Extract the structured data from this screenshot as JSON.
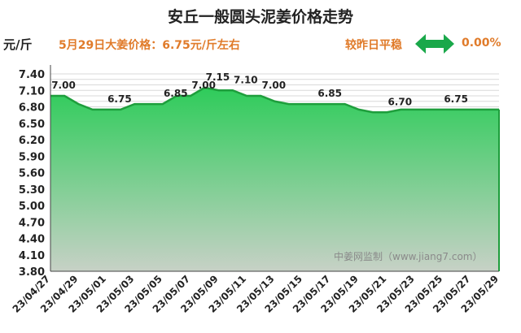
{
  "header": {
    "title": "安丘一般圆头泥姜价格走势",
    "unit": "元/斤",
    "price_note": "5月29日大姜价格：6.75元/斤左右",
    "compare_label": "较昨日平稳",
    "compare_value": "0.00%",
    "compare_icon": "double-arrow-icon",
    "accent_color": "#e07b2a",
    "arrow_color": "#1aa84a"
  },
  "watermark": "中姜网监制（www.jiang7.com）",
  "chart_data": {
    "type": "area",
    "title": "安丘一般圆头泥姜价格走势",
    "ylabel": "元/斤",
    "ylim": [
      3.8,
      7.4
    ],
    "yticks": [
      3.8,
      4.1,
      4.4,
      4.7,
      5.0,
      5.3,
      5.6,
      5.9,
      6.2,
      6.5,
      6.8,
      7.1,
      7.4
    ],
    "x_tick_labels": [
      "23/04/27",
      "23/04/29",
      "23/05/01",
      "23/05/03",
      "23/05/05",
      "23/05/07",
      "23/05/09",
      "23/05/11",
      "23/05/13",
      "23/05/15",
      "23/05/17",
      "23/05/19",
      "23/05/21",
      "23/05/23",
      "23/05/25",
      "23/05/27",
      "23/05/29"
    ],
    "dates": [
      "23/04/27",
      "23/04/28",
      "23/04/29",
      "23/04/30",
      "23/05/01",
      "23/05/02",
      "23/05/03",
      "23/05/04",
      "23/05/05",
      "23/05/06",
      "23/05/07",
      "23/05/08",
      "23/05/09",
      "23/05/10",
      "23/05/11",
      "23/05/12",
      "23/05/13",
      "23/05/14",
      "23/05/15",
      "23/05/16",
      "23/05/17",
      "23/05/18",
      "23/05/19",
      "23/05/20",
      "23/05/21",
      "23/05/22",
      "23/05/23",
      "23/05/24",
      "23/05/25",
      "23/05/26",
      "23/05/27",
      "23/05/28",
      "23/05/29"
    ],
    "values": [
      7.0,
      7.0,
      6.85,
      6.75,
      6.75,
      6.75,
      6.85,
      6.85,
      6.85,
      7.0,
      7.0,
      7.15,
      7.1,
      7.1,
      7.0,
      7.0,
      6.9,
      6.85,
      6.85,
      6.85,
      6.85,
      6.85,
      6.75,
      6.7,
      6.7,
      6.75,
      6.75,
      6.75,
      6.75,
      6.75,
      6.75,
      6.75,
      6.75
    ],
    "data_labels": [
      {
        "date": "23/04/27",
        "text": "7.00"
      },
      {
        "date": "23/05/01",
        "text": "6.75"
      },
      {
        "date": "23/05/05",
        "text": "6.85"
      },
      {
        "date": "23/05/07",
        "text": "7.00"
      },
      {
        "date": "23/05/08",
        "text": "7.15"
      },
      {
        "date": "23/05/10",
        "text": "7.10"
      },
      {
        "date": "23/05/12",
        "text": "7.00"
      },
      {
        "date": "23/05/16",
        "text": "6.85"
      },
      {
        "date": "23/05/21",
        "text": "6.70"
      },
      {
        "date": "23/05/25",
        "text": "6.75"
      }
    ],
    "grid": true,
    "fill_color_top": "#2ecc5a",
    "fill_color_bottom": "#c7d1c6",
    "line_color": "#1e9e3c"
  }
}
